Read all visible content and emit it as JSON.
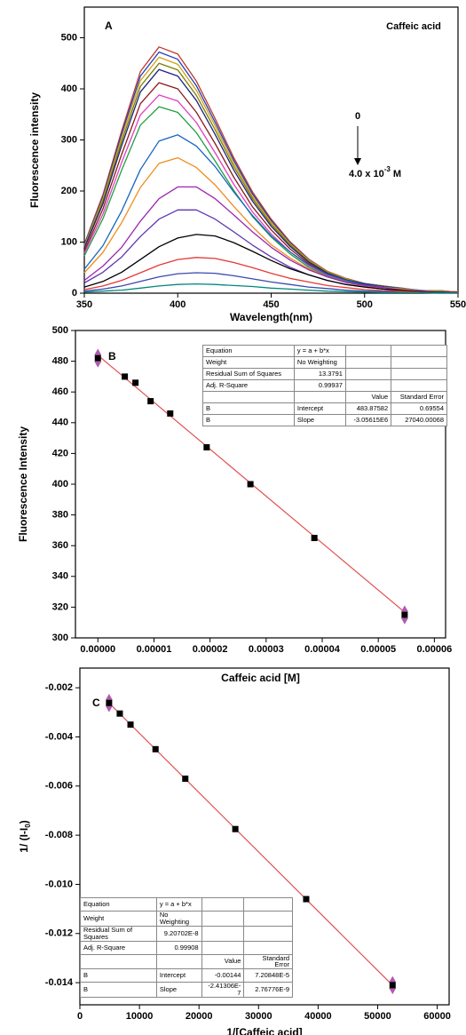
{
  "chart_data": [
    {
      "type": "line",
      "panel_label": "A",
      "compound": "Caffeic acid",
      "arrow_start": "0",
      "arrow_end": {
        "text": "4.0 x 10",
        "sup": "-3",
        "suffix": "M"
      },
      "xlabel": "Wavelength(nm)",
      "ylabel": "Fluorescence intensity",
      "xlim": [
        350,
        550
      ],
      "ylim": [
        0,
        560
      ],
      "xticks": [
        350,
        400,
        450,
        500,
        550
      ],
      "yticks": [
        0,
        100,
        200,
        300,
        400,
        500
      ],
      "x": [
        350,
        360,
        370,
        380,
        390,
        400,
        410,
        420,
        430,
        440,
        450,
        460,
        470,
        480,
        490,
        500,
        510,
        520,
        530,
        540,
        550
      ],
      "series": [
        {
          "color": "#c0392b",
          "values": [
            96,
            193,
            318,
            434,
            482,
            468,
            415,
            342,
            265,
            198,
            145,
            101,
            67,
            43,
            29,
            19,
            14,
            10,
            5,
            5,
            2
          ]
        },
        {
          "color": "#1f3fbf",
          "values": [
            94,
            189,
            312,
            425,
            472,
            458,
            406,
            335,
            260,
            194,
            142,
            99,
            66,
            42,
            28,
            19,
            14,
            9,
            5,
            5,
            2
          ]
        },
        {
          "color": "#d4a017",
          "values": [
            92,
            185,
            305,
            416,
            462,
            448,
            397,
            328,
            254,
            189,
            139,
            97,
            65,
            42,
            28,
            18,
            14,
            9,
            5,
            5,
            2
          ]
        },
        {
          "color": "#7d7d00",
          "values": [
            90,
            180,
            297,
            405,
            450,
            437,
            387,
            320,
            248,
            185,
            135,
            95,
            63,
            41,
            27,
            18,
            14,
            9,
            5,
            5,
            2
          ]
        },
        {
          "color": "#1a237e",
          "values": [
            88,
            175,
            289,
            394,
            438,
            425,
            377,
            311,
            241,
            180,
            131,
            92,
            61,
            39,
            26,
            18,
            13,
            9,
            4,
            4,
            2
          ]
        },
        {
          "color": "#8b1a1a",
          "values": [
            82,
            165,
            272,
            371,
            412,
            400,
            354,
            293,
            227,
            169,
            124,
            87,
            58,
            37,
            25,
            16,
            12,
            8,
            4,
            4,
            2
          ]
        },
        {
          "color": "#e040c0",
          "values": [
            78,
            155,
            256,
            349,
            388,
            376,
            334,
            275,
            213,
            159,
            116,
            81,
            54,
            35,
            23,
            16,
            12,
            8,
            4,
            4,
            2
          ]
        },
        {
          "color": "#20a040",
          "values": [
            73,
            146,
            241,
            329,
            365,
            354,
            314,
            259,
            201,
            150,
            110,
            77,
            51,
            33,
            22,
            15,
            11,
            7,
            4,
            4,
            2
          ]
        },
        {
          "color": "#1565c0",
          "values": [
            47,
            93,
            161,
            242,
            298,
            310,
            288,
            248,
            198,
            152,
            112,
            81,
            56,
            37,
            25,
            16,
            12,
            9,
            6,
            3,
            3
          ]
        },
        {
          "color": "#f08c1e",
          "values": [
            40,
            80,
            138,
            207,
            254,
            265,
            246,
            212,
            170,
            130,
            95,
            69,
            48,
            32,
            21,
            13,
            11,
            8,
            5,
            3,
            3
          ]
        },
        {
          "color": "#9c27b0",
          "values": [
            25,
            53,
            90,
            141,
            185,
            208,
            208,
            185,
            153,
            120,
            90,
            65,
            46,
            32,
            21,
            15,
            11,
            6,
            4,
            2,
            2
          ]
        },
        {
          "color": "#5e35b1",
          "values": [
            20,
            41,
            71,
            111,
            145,
            163,
            163,
            145,
            120,
            94,
            71,
            51,
            36,
            25,
            17,
            12,
            8,
            5,
            3,
            2,
            2
          ]
        },
        {
          "color": "#000000",
          "values": [
            12,
            23,
            41,
            66,
            91,
            108,
            115,
            112,
            99,
            82,
            64,
            48,
            36,
            25,
            17,
            12,
            8,
            6,
            3,
            2,
            1
          ]
        },
        {
          "color": "#e53935",
          "values": [
            7,
            14,
            25,
            40,
            55,
            66,
            70,
            68,
            60,
            50,
            39,
            29,
            22,
            15,
            11,
            7,
            5,
            4,
            2,
            1,
            1
          ]
        },
        {
          "color": "#3949ab",
          "values": [
            4,
            8,
            14,
            23,
            32,
            38,
            40,
            39,
            34,
            28,
            22,
            17,
            12,
            9,
            6,
            4,
            3,
            2,
            1,
            1,
            0
          ]
        },
        {
          "color": "#00897b",
          "values": [
            2,
            4,
            6,
            10,
            14,
            17,
            18,
            17,
            15,
            13,
            10,
            8,
            6,
            4,
            3,
            2,
            1,
            1,
            1,
            0,
            0
          ]
        }
      ]
    },
    {
      "type": "scatter",
      "panel_label": "B",
      "xlabel": "Caffeic acid [M]",
      "ylabel": "Fluorescence  Intensity",
      "xlim": [
        -4e-06,
        6.2e-05
      ],
      "ylim": [
        300,
        500
      ],
      "xticks": [
        {
          "value": 0,
          "label": "0.00000"
        },
        {
          "value": 1e-05,
          "label": "0.00001"
        },
        {
          "value": 2e-05,
          "label": "0.00002"
        },
        {
          "value": 3e-05,
          "label": "0.00003"
        },
        {
          "value": 4e-05,
          "label": "0.00004"
        },
        {
          "value": 5e-05,
          "label": "0.00005"
        },
        {
          "value": 6e-05,
          "label": "0.00006"
        }
      ],
      "yticks": [
        300,
        320,
        340,
        360,
        380,
        400,
        420,
        440,
        460,
        480,
        500
      ],
      "x": [
        0,
        4.8e-06,
        6.7e-06,
        9.4e-06,
        1.29e-05,
        1.94e-05,
        2.72e-05,
        3.86e-05,
        5.47e-05
      ],
      "values": [
        482,
        470,
        466,
        454,
        446,
        424,
        400,
        365,
        315
      ],
      "errors": [
        5,
        null,
        null,
        null,
        null,
        null,
        null,
        null,
        5
      ],
      "color": "#000000",
      "fit_color": "#e05050",
      "error_color": "#b05ab0",
      "fit": {
        "intercept": 483.87582,
        "slope": -3056150
      },
      "table": {
        "rows": [
          [
            "Equation",
            "y = a + b*x",
            null,
            null
          ],
          [
            "Weight",
            "No Weighting",
            null,
            null
          ],
          [
            "Residual Sum of Squares",
            "13.3791",
            null,
            null
          ],
          [
            "Adj. R-Square",
            "0.99937",
            null,
            null
          ],
          [
            null,
            null,
            "Value",
            "Standard Error"
          ],
          [
            "B",
            "Intercept",
            "483.87582",
            "0.69554"
          ],
          [
            "B",
            "Slope",
            "-3.05615E6",
            "27040.00068"
          ]
        ]
      }
    },
    {
      "type": "scatter",
      "panel_label": "C",
      "xlabel": "1/[Caffeic acid]",
      "ylabel": {
        "text": "1/ (I-I",
        "sub": "0",
        "suffix": ")"
      },
      "xlim": [
        0,
        62000
      ],
      "ylim": [
        -0.0149,
        -0.0012
      ],
      "xticks": [
        0,
        10000,
        20000,
        30000,
        40000,
        50000,
        60000
      ],
      "yticks": [
        -0.002,
        -0.004,
        -0.006,
        -0.008,
        {
          "value": -0.01,
          "label": "-0.010"
        },
        -0.012,
        -0.014
      ],
      "x": [
        4900,
        6700,
        8500,
        12700,
        17700,
        26100,
        38000,
        52500
      ],
      "values": [
        -0.00262,
        -0.00305,
        -0.0035,
        -0.0045,
        -0.0057,
        -0.00775,
        -0.0106,
        -0.0141
      ],
      "errors": [
        0.0003,
        null,
        null,
        null,
        null,
        null,
        null,
        0.0003
      ],
      "color": "#000000",
      "fit_color": "#e05050",
      "error_color": "#b05ab0",
      "fit": {
        "intercept": -0.00144,
        "slope": -2.41306e-07
      },
      "table": {
        "rows": [
          [
            "Equation",
            "y = a + b*x",
            null,
            null
          ],
          [
            "Weight",
            "No Weighting",
            null,
            null
          ],
          [
            "Residual Sum of Squares",
            "9.20702E-8",
            null,
            null
          ],
          [
            "Adj. R-Square",
            "0.99908",
            null,
            null
          ],
          [
            null,
            null,
            "Value",
            "Standard Error"
          ],
          [
            "B",
            "Intercept",
            "-0.00144",
            "7.20848E-5"
          ],
          [
            "B",
            "Slope",
            "-2.41306E-7",
            "2.76776E-9"
          ]
        ]
      }
    }
  ]
}
